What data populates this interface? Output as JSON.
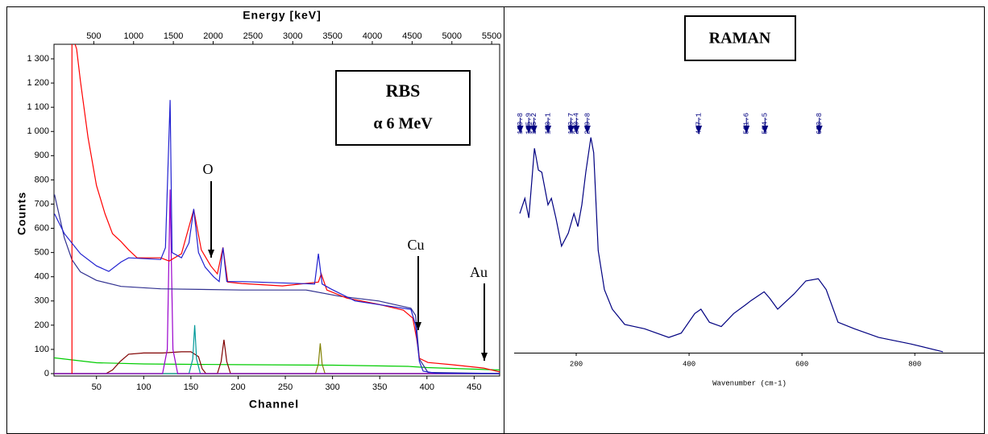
{
  "chart_data": [
    {
      "type": "line",
      "xlabel": "Channel",
      "x2label": "Energy [keV]",
      "ylabel": "Counts",
      "xlim": [
        5,
        477
      ],
      "xticks": [
        50,
        100,
        150,
        200,
        250,
        300,
        350,
        400,
        450
      ],
      "x2lim": [
        0,
        5600
      ],
      "x2ticks": [
        500,
        1000,
        1500,
        2000,
        2500,
        3000,
        3500,
        4000,
        4500,
        5000,
        5500
      ],
      "ylim": [
        -10,
        1360
      ],
      "yticks": [
        0,
        100,
        200,
        300,
        400,
        500,
        600,
        700,
        800,
        900,
        {
          "value": 1000,
          "label": "1 000"
        },
        {
          "value": 1100,
          "label": "1 100"
        },
        {
          "value": 1200,
          "label": "1 200"
        },
        {
          "value": 1300,
          "label": "1 300"
        }
      ],
      "annotations": [
        "RBS",
        "α 6 MeV",
        "O",
        "Cu",
        "Au"
      ],
      "series": [
        {
          "color": "#00cc00",
          "x": [
            5,
            50,
            100,
            200,
            300,
            380,
            400,
            477
          ],
          "values": [
            65,
            45,
            40,
            37,
            35,
            30,
            25,
            15
          ]
        },
        {
          "color": "#800000",
          "x": [
            5,
            60,
            67,
            75,
            84,
            100,
            120,
            140,
            150,
            158,
            162,
            166,
            178,
            182,
            185,
            188,
            192,
            477
          ],
          "values": [
            0,
            0,
            15,
            50,
            80,
            85,
            85,
            90,
            90,
            70,
            20,
            0,
            0,
            50,
            140,
            50,
            0,
            0
          ]
        },
        {
          "color": "#808000",
          "x": [
            5,
            282,
            285,
            287,
            289,
            292,
            477
          ],
          "values": [
            0,
            0,
            40,
            125,
            40,
            0,
            0
          ]
        },
        {
          "color": "#009999",
          "x": [
            5,
            148,
            152,
            154,
            156,
            160,
            477
          ],
          "values": [
            0,
            0,
            60,
            200,
            60,
            0,
            0
          ]
        },
        {
          "color": "#9900cc",
          "x": [
            5,
            120,
            125,
            128,
            131,
            136,
            477
          ],
          "values": [
            0,
            0,
            100,
            760,
            100,
            0,
            0
          ]
        },
        {
          "color": "#303090",
          "x": [
            5.5,
            16,
            24,
            33,
            50,
            76,
            118,
            204,
            272,
            307,
            349,
            383,
            388,
            392,
            401,
            477
          ],
          "values": [
            740,
            560,
            470,
            420,
            385,
            360,
            350,
            345,
            345,
            320,
            300,
            270,
            240,
            60,
            5,
            0
          ]
        },
        {
          "color": "#ff0000",
          "x": [
            24,
            24,
            29,
            33,
            41,
            50,
            59,
            67,
            76,
            84,
            93,
            118,
            127,
            140,
            153,
            161,
            171,
            178,
            184,
            189,
            204,
            247,
            285,
            288,
            294,
            315,
            349,
            375,
            385,
            389,
            392,
            401,
            426,
            460,
            477
          ],
          "values": [
            0,
            1400,
            1340,
            1208,
            976,
            777,
            660,
            578,
            545,
            511,
            478,
            478,
            465,
            495,
            677,
            511,
            445,
            412,
            521,
            378,
            372,
            362,
            378,
            412,
            345,
            312,
            286,
            262,
            229,
            146,
            63,
            46,
            37,
            23,
            7
          ]
        },
        {
          "color": "#2020d0",
          "x": [
            5.5,
            16,
            33,
            50,
            63,
            76,
            84,
            118,
            123,
            128,
            130,
            140,
            148,
            153,
            158,
            165,
            174,
            180,
            184,
            188,
            204,
            281,
            285,
            289,
            298,
            324,
            358,
            383,
            388,
            392,
            396,
            409,
            477
          ],
          "values": [
            660,
            578,
            495,
            445,
            422,
            461,
            478,
            471,
            520,
            1130,
            500,
            478,
            540,
            680,
            500,
            440,
            400,
            380,
            520,
            380,
            380,
            370,
            495,
            370,
            350,
            300,
            280,
            265,
            200,
            50,
            10,
            2,
            0
          ]
        }
      ]
    },
    {
      "type": "line",
      "title": "RAMAN",
      "xlabel": "Wavenumber (cm-1)",
      "xlim": [
        90,
        924
      ],
      "xticks": [
        200,
        400,
        600,
        800
      ],
      "ylim": [
        0,
        140
      ],
      "peaks": [
        100.8,
        115.9,
        125.2,
        150.1,
        190.7,
        200.4,
        219.8,
        417.1,
        501.6,
        534.5,
        630.8
      ],
      "series": [
        {
          "color": "#000080",
          "x": [
            100,
            109,
            116,
            126,
            133,
            139,
            150,
            156,
            164,
            174,
            186,
            196,
            203,
            210,
            217,
            226,
            231,
            239,
            250,
            264,
            286,
            321,
            364,
            386,
            410,
            421,
            436,
            457,
            479,
            500,
            510,
            533,
            543,
            557,
            586,
            607,
            629,
            643,
            664,
            693,
            736,
            793,
            850
          ],
          "values": [
            64,
            71,
            62,
            94,
            84,
            83,
            68,
            71,
            62,
            49,
            55,
            64,
            58,
            68,
            83,
            99,
            92,
            47,
            29,
            20,
            13,
            11,
            7,
            9,
            18,
            20,
            14,
            12,
            18,
            22,
            24,
            28,
            25,
            20,
            27,
            33,
            34,
            29,
            14,
            11,
            7,
            4,
            0.4
          ]
        }
      ]
    }
  ]
}
